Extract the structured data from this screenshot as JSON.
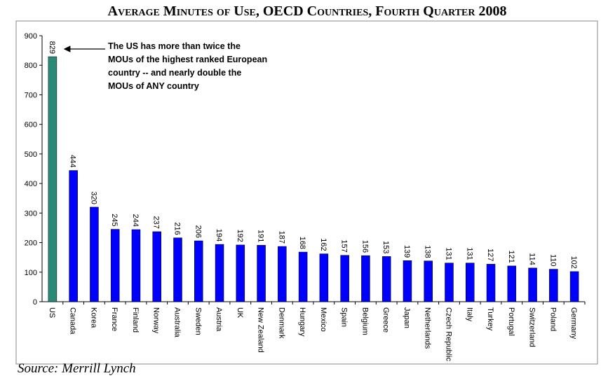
{
  "chart_data": {
    "type": "bar",
    "title": "Average Minutes of Use, OECD Countries, Fourth Quarter 2008",
    "categories": [
      "US",
      "Canada",
      "Korea",
      "France",
      "Finland",
      "Norway",
      "Australia",
      "Sweden",
      "Austria",
      "UK",
      "New Zealand",
      "Denmark",
      "Hungary",
      "Mexico",
      "Spain",
      "Belgium",
      "Greece",
      "Japan",
      "Netherlands",
      "Czech Republic",
      "Italy",
      "Turkey",
      "Portugal",
      "Switzerland",
      "Poland",
      "Germany"
    ],
    "values": [
      829,
      444,
      320,
      245,
      244,
      237,
      216,
      206,
      194,
      192,
      191,
      187,
      168,
      162,
      157,
      156,
      153,
      139,
      138,
      131,
      131,
      127,
      121,
      114,
      110,
      102
    ],
    "colors": [
      "#2a8a78",
      "#0000ff",
      "#0000ff",
      "#0000ff",
      "#0000ff",
      "#0000ff",
      "#0000ff",
      "#0000ff",
      "#0000ff",
      "#0000ff",
      "#0000ff",
      "#0000ff",
      "#0000ff",
      "#0000ff",
      "#0000ff",
      "#0000ff",
      "#0000ff",
      "#0000ff",
      "#0000ff",
      "#0000ff",
      "#0000ff",
      "#0000ff",
      "#0000ff",
      "#0000ff",
      "#0000ff",
      "#0000ff"
    ],
    "ylim": [
      0,
      900
    ],
    "yticks": [
      0,
      100,
      200,
      300,
      400,
      500,
      600,
      700,
      800,
      900
    ],
    "grid": false,
    "annotation": [
      "The US has more than twice the",
      "MOUs of the highest ranked European",
      "country -- and nearly double the",
      "MOUs of ANY country"
    ],
    "source": "Source:  Merrill Lynch"
  }
}
